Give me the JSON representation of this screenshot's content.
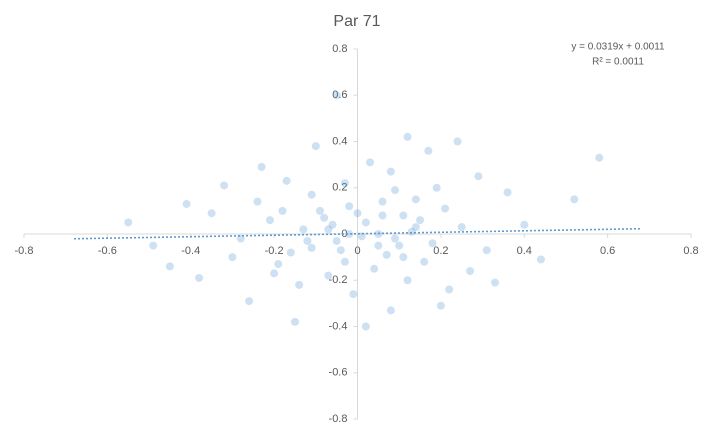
{
  "chart_data": {
    "type": "scatter",
    "title": "Par 71",
    "series": [
      {
        "name": "Par 71",
        "color": "#5b9bd5",
        "x": [
          0.02,
          -0.05,
          0.11,
          -0.13,
          0.07,
          -0.02,
          0.18,
          -0.21,
          0.04,
          -0.09,
          0.14,
          -0.16,
          0.25,
          -0.28,
          0.01,
          0.09,
          -0.07,
          0.21,
          -0.11,
          0.05,
          -0.03,
          0.16,
          -0.19,
          0.12,
          -0.24,
          0.31,
          -0.35,
          0.08,
          -0.01,
          0.03,
          -0.06,
          0.19,
          -0.14,
          0.1,
          -0.08,
          0.27,
          -0.3,
          0.06,
          -0.04,
          0.13,
          -0.17,
          0.22,
          -0.12,
          0.0,
          0.15,
          -0.2,
          0.36,
          -0.41,
          0.44,
          -0.49,
          0.52,
          0.17,
          -0.23,
          0.29,
          -0.26,
          0.33,
          -0.38,
          0.02,
          -0.1,
          0.08,
          0.12,
          -0.15,
          0.2,
          -0.05,
          0.24,
          -0.32,
          0.4,
          -0.45,
          0.58,
          -0.55,
          0.05,
          -0.07,
          0.11,
          -0.02,
          0.14,
          -0.18,
          0.09,
          -0.11,
          0.06,
          -0.03
        ],
        "values": [
          0.05,
          -0.03,
          0.08,
          0.02,
          -0.09,
          0.12,
          -0.04,
          0.06,
          -0.15,
          0.1,
          0.15,
          -0.08,
          0.03,
          -0.02,
          -0.01,
          0.19,
          -0.18,
          0.11,
          0.17,
          0.0,
          0.22,
          -0.12,
          -0.13,
          -0.2,
          0.14,
          -0.07,
          0.09,
          0.27,
          -0.26,
          0.31,
          0.04,
          0.2,
          -0.22,
          -0.05,
          0.07,
          -0.16,
          -0.1,
          0.14,
          -0.07,
          0.01,
          0.23,
          -0.24,
          -0.03,
          0.09,
          0.06,
          -0.17,
          0.18,
          0.13,
          -0.11,
          -0.05,
          0.15,
          0.36,
          0.29,
          0.25,
          -0.29,
          -0.21,
          -0.19,
          -0.4,
          0.38,
          -0.33,
          0.42,
          -0.38,
          -0.31,
          0.6,
          0.4,
          0.21,
          0.04,
          -0.14,
          0.33,
          0.05,
          -0.05,
          0.02,
          -0.1,
          0.0,
          0.03,
          0.1,
          -0.02,
          -0.06,
          0.08,
          -0.12
        ]
      }
    ],
    "trendline": {
      "slope": 0.0319,
      "intercept": 0.0011,
      "x": [
        -0.68,
        0.68
      ],
      "color": "#5b9bd5",
      "equation": "y = 0.0319x + 0.0011",
      "r_squared": "R² = 0.0011"
    },
    "xlim": [
      -0.8,
      0.8
    ],
    "xticks": [
      -0.8,
      -0.6,
      -0.4,
      -0.2,
      0,
      0.2,
      0.4,
      0.6,
      0.8
    ],
    "ylim": [
      -0.8,
      0.8
    ],
    "yticks": [
      -0.8,
      -0.6,
      -0.4,
      -0.2,
      0,
      0.2,
      0.4,
      0.6,
      0.8
    ]
  }
}
